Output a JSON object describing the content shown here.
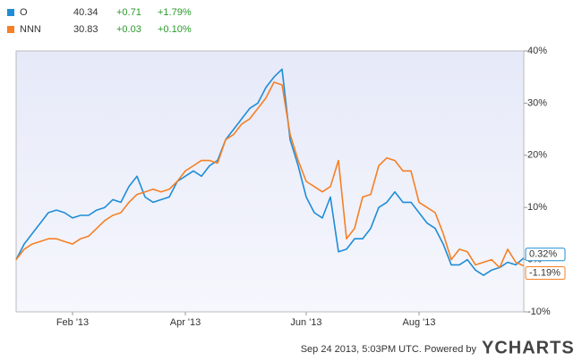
{
  "chart_data": {
    "type": "line",
    "categories": [
      null,
      null,
      null,
      null,
      null,
      null,
      null,
      "Feb '13",
      null,
      null,
      null,
      null,
      null,
      null,
      null,
      null,
      null,
      null,
      null,
      null,
      null,
      "Apr '13",
      null,
      null,
      null,
      null,
      null,
      null,
      null,
      null,
      null,
      null,
      null,
      null,
      null,
      null,
      "Jun '13",
      null,
      null,
      null,
      null,
      null,
      null,
      null,
      null,
      null,
      null,
      null,
      null,
      null,
      "Aug '13",
      null,
      null,
      null,
      null,
      null,
      null,
      null,
      null,
      null,
      null,
      null,
      null,
      null
    ],
    "series": [
      {
        "name": "O",
        "color": "#1f8dd6",
        "quote": [
          "40.34",
          "+0.71",
          "+1.79%"
        ],
        "last_label": "0.32%",
        "values": [
          0,
          3,
          5,
          7,
          9,
          9.5,
          9,
          8,
          8.5,
          8.5,
          9.5,
          10,
          11.5,
          11,
          14,
          16,
          12,
          11,
          11.5,
          12,
          15,
          16,
          17,
          16,
          18,
          19,
          23,
          25,
          27,
          29,
          30,
          33,
          35,
          36.5,
          23,
          18,
          12,
          9,
          8,
          12,
          1.5,
          2,
          4,
          4,
          6,
          10,
          11,
          13,
          11,
          11,
          9,
          7,
          6,
          3,
          -1,
          -1,
          0,
          -2,
          -3,
          -2,
          -1.5,
          -0.5,
          -1,
          0.32
        ]
      },
      {
        "name": "NNN",
        "color": "#f58025",
        "quote": [
          "30.83",
          "+0.03",
          "+0.10%"
        ],
        "last_label": "-1.19%",
        "values": [
          0,
          2,
          3,
          3.5,
          4,
          4,
          3.5,
          3,
          4,
          4.5,
          6,
          7.5,
          8.5,
          9,
          11,
          12.5,
          13,
          13.5,
          13,
          13.5,
          15,
          17,
          18,
          19,
          19,
          18.5,
          23,
          24,
          26,
          27,
          29,
          31,
          34,
          33.5,
          24,
          19,
          15,
          14,
          13,
          14,
          19,
          4,
          6,
          12,
          12.5,
          18,
          19.5,
          19,
          17,
          17,
          11,
          10,
          9,
          5,
          0,
          2,
          1.5,
          -1,
          -0.5,
          0,
          -1.5,
          2,
          -0.5,
          -1.19
        ]
      }
    ],
    "ylim": [
      -10,
      40
    ],
    "yticks": [
      {
        "value": -10,
        "label": "-10%"
      },
      {
        "value": 0,
        "label": "0%"
      },
      {
        "value": 10,
        "label": "10%"
      },
      {
        "value": 20,
        "label": "20%"
      },
      {
        "value": 30,
        "label": "30%"
      },
      {
        "value": 40,
        "label": "40%"
      }
    ],
    "grid": false
  },
  "footer": {
    "timestamp": "Sep 24 2013, 5:03PM UTC. Powered by",
    "brand": "YCHARTS"
  }
}
